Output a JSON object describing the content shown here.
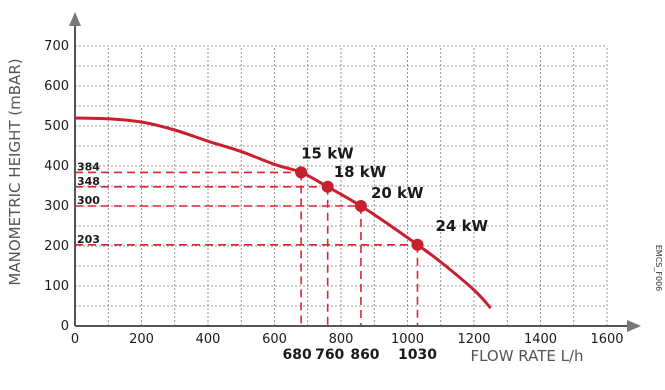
{
  "chart_data": {
    "type": "line",
    "xlabel": "FLOW RATE L/h",
    "ylabel": "MANOMETRIC HEIGHT (mBAR)",
    "xlim": [
      0,
      1600
    ],
    "ylim": [
      0,
      700
    ],
    "xticks": [
      0,
      200,
      400,
      600,
      800,
      1000,
      1200,
      1400,
      1600
    ],
    "yticks": [
      0,
      100,
      200,
      300,
      400,
      500,
      600,
      700
    ],
    "grid": true,
    "series": [
      {
        "curve": {
          "x": [
            0,
            100,
            200,
            300,
            400,
            500,
            600,
            680,
            760,
            860,
            950,
            1030,
            1100,
            1200,
            1250
          ],
          "y": [
            520,
            518,
            510,
            490,
            462,
            436,
            404,
            384,
            348,
            300,
            250,
            203,
            160,
            90,
            45
          ]
        }
      }
    ],
    "points": [
      {
        "label": "15 kW",
        "x": 680,
        "y": 384,
        "x_label": "680",
        "y_label": "384"
      },
      {
        "label": "18 kW",
        "x": 760,
        "y": 348,
        "x_label": "760",
        "y_label": "348"
      },
      {
        "label": "20 kW",
        "x": 860,
        "y": 300,
        "x_label": "860",
        "y_label": "300"
      },
      {
        "label": "24 kW",
        "x": 1030,
        "y": 203,
        "x_label": "1030",
        "y_label": "203"
      }
    ],
    "colors": {
      "curve": "#c8202d",
      "reference_lines": "#e0242f",
      "grid": "#7a7a7a",
      "axis": "#555555"
    },
    "annotation": "EMCS_F006"
  }
}
